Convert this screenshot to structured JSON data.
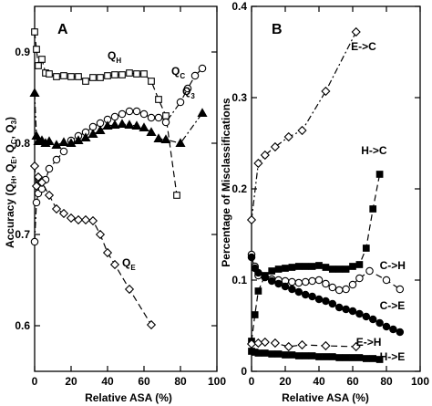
{
  "chart_data": [
    {
      "panel": "A",
      "type": "line",
      "xlabel": "Relative ASA (%)",
      "ylabel_parts": [
        "Accuracy (Q",
        "H",
        ", Q",
        "E",
        ", Q",
        "C",
        ", Q",
        "3",
        ")"
      ],
      "xlim": [
        0,
        100
      ],
      "ylim": [
        0.55,
        0.95
      ],
      "xticks": [
        0,
        20,
        40,
        60,
        80,
        100
      ],
      "yticks": [
        0.6,
        0.7,
        0.8,
        0.9
      ],
      "ytick_labels": [
        "0.6",
        "0.7",
        "0.8",
        "0.9"
      ],
      "series": [
        {
          "name_main": "Q",
          "name_sub": "H",
          "label_pos": [
            40,
            0.892
          ],
          "marker": "open-square",
          "dash": "7,4",
          "x": [
            0,
            1,
            2,
            4,
            6,
            8,
            12,
            16,
            20,
            24,
            28,
            32,
            36,
            40,
            44,
            48,
            52,
            56,
            60,
            64,
            68,
            72,
            78
          ],
          "y": [
            0.922,
            0.903,
            0.885,
            0.892,
            0.877,
            0.876,
            0.873,
            0.874,
            0.873,
            0.873,
            0.868,
            0.872,
            0.872,
            0.874,
            0.875,
            0.875,
            0.877,
            0.876,
            0.876,
            0.868,
            0.848,
            0.83,
            0.743
          ]
        },
        {
          "name_main": "Q",
          "name_sub": "C",
          "label_pos": [
            75,
            0.875
          ],
          "marker": "open-circle",
          "dash": "7,3,2,3",
          "x": [
            0,
            1,
            2,
            4,
            6,
            8,
            12,
            16,
            20,
            24,
            28,
            32,
            36,
            40,
            44,
            48,
            52,
            56,
            60,
            64,
            68,
            72,
            80,
            84,
            88,
            92
          ],
          "y": [
            0.692,
            0.735,
            0.745,
            0.75,
            0.76,
            0.772,
            0.782,
            0.791,
            0.803,
            0.808,
            0.812,
            0.818,
            0.822,
            0.826,
            0.829,
            0.832,
            0.835,
            0.835,
            0.832,
            0.828,
            0.828,
            0.823,
            0.845,
            0.86,
            0.874,
            0.882
          ]
        },
        {
          "name_main": "Q",
          "name_sub": "3",
          "label_pos": [
            81,
            0.853
          ],
          "marker": "filled-triangle",
          "dash": "7,3,2,3",
          "x": [
            0,
            1,
            2,
            4,
            6,
            8,
            12,
            16,
            20,
            24,
            28,
            32,
            36,
            40,
            44,
            48,
            52,
            56,
            60,
            64,
            68,
            72,
            80,
            92
          ],
          "y": [
            0.855,
            0.808,
            0.802,
            0.803,
            0.8,
            0.802,
            0.798,
            0.801,
            0.8,
            0.803,
            0.806,
            0.81,
            0.814,
            0.819,
            0.82,
            0.821,
            0.82,
            0.819,
            0.817,
            0.812,
            0.805,
            0.804,
            0.8,
            0.833
          ]
        },
        {
          "name_main": "Q",
          "name_sub": "E",
          "label_pos": [
            48,
            0.665
          ],
          "marker": "open-diamond",
          "dash": "7,4",
          "x": [
            0,
            1,
            2,
            4,
            8,
            12,
            16,
            20,
            24,
            28,
            32,
            36,
            40,
            44,
            52,
            64
          ],
          "y": [
            0.775,
            0.753,
            0.763,
            0.757,
            0.743,
            0.728,
            0.723,
            0.718,
            0.716,
            0.716,
            0.715,
            0.7,
            0.68,
            0.667,
            0.64,
            0.601
          ]
        }
      ]
    },
    {
      "panel": "B",
      "type": "line",
      "xlabel": "Relative ASA (%)",
      "ylabel": "Percentage of Misclassifications",
      "xlim": [
        0,
        100
      ],
      "ylim": [
        0,
        0.4
      ],
      "xticks": [
        0,
        20,
        40,
        60,
        80,
        100
      ],
      "yticks": [
        0,
        0.1,
        0.2,
        0.3,
        0.4
      ],
      "ytick_labels": [
        "0",
        "0.1",
        "0.2",
        "0.3",
        "0.4"
      ],
      "series": [
        {
          "name": "E->C",
          "label_pos": [
            59,
            0.352
          ],
          "marker": "open-diamond",
          "dash": "7,3,2,3",
          "x": [
            0,
            4,
            8,
            14,
            22,
            30,
            44,
            62
          ],
          "y": [
            0.166,
            0.228,
            0.237,
            0.246,
            0.257,
            0.264,
            0.307,
            0.372
          ]
        },
        {
          "name": "H->C",
          "label_pos": [
            65,
            0.238
          ],
          "marker": "filled-square",
          "dash": "7,4",
          "x": [
            0,
            2,
            4,
            8,
            12,
            16,
            20,
            24,
            28,
            32,
            36,
            40,
            44,
            48,
            52,
            56,
            60,
            64,
            68,
            72,
            76
          ],
          "y": [
            0.033,
            0.062,
            0.088,
            0.105,
            0.11,
            0.112,
            0.113,
            0.114,
            0.115,
            0.115,
            0.115,
            0.116,
            0.114,
            0.112,
            0.112,
            0.112,
            0.115,
            0.117,
            0.135,
            0.178,
            0.216
          ]
        },
        {
          "name": "C->H",
          "label_pos": [
            76,
            0.112
          ],
          "marker": "open-circle",
          "dash": "7,4",
          "x": [
            0,
            2,
            4,
            8,
            12,
            16,
            20,
            24,
            28,
            32,
            36,
            40,
            44,
            48,
            52,
            56,
            60,
            64,
            70,
            80,
            88
          ],
          "y": [
            0.128,
            0.115,
            0.105,
            0.103,
            0.101,
            0.1,
            0.099,
            0.098,
            0.097,
            0.098,
            0.099,
            0.1,
            0.096,
            0.092,
            0.089,
            0.09,
            0.095,
            0.102,
            0.11,
            0.1,
            0.09
          ]
        },
        {
          "name": "C->E",
          "label_pos": [
            76,
            0.068
          ],
          "marker": "filled-circle",
          "dash": "7,4",
          "x": [
            0,
            2,
            4,
            8,
            12,
            16,
            20,
            24,
            28,
            32,
            36,
            40,
            44,
            48,
            52,
            56,
            60,
            64,
            68,
            72,
            76,
            80,
            84,
            88
          ],
          "y": [
            0.125,
            0.113,
            0.108,
            0.103,
            0.099,
            0.096,
            0.093,
            0.09,
            0.087,
            0.084,
            0.082,
            0.079,
            0.077,
            0.074,
            0.07,
            0.068,
            0.066,
            0.063,
            0.06,
            0.057,
            0.053,
            0.049,
            0.046,
            0.043
          ]
        },
        {
          "name": "E->H",
          "label_pos": [
            62,
            0.028
          ],
          "marker": "open-diamond",
          "dash": "7,4",
          "x": [
            0,
            4,
            8,
            14,
            22,
            30,
            44,
            62
          ],
          "y": [
            0.03,
            0.031,
            0.032,
            0.031,
            0.027,
            0.029,
            0.028,
            0.027
          ]
        },
        {
          "name": "H->E",
          "label_pos": [
            76,
            0.012
          ],
          "marker": "filled-square",
          "dash": "7,3,2,3",
          "x": [
            0,
            2,
            4,
            8,
            12,
            16,
            20,
            24,
            28,
            32,
            36,
            40,
            44,
            48,
            52,
            56,
            60,
            64,
            68,
            72,
            76
          ],
          "y": [
            0.022,
            0.021,
            0.02,
            0.02,
            0.019,
            0.019,
            0.018,
            0.018,
            0.017,
            0.017,
            0.017,
            0.016,
            0.016,
            0.016,
            0.015,
            0.015,
            0.015,
            0.015,
            0.014,
            0.014,
            0.013
          ]
        }
      ]
    }
  ]
}
